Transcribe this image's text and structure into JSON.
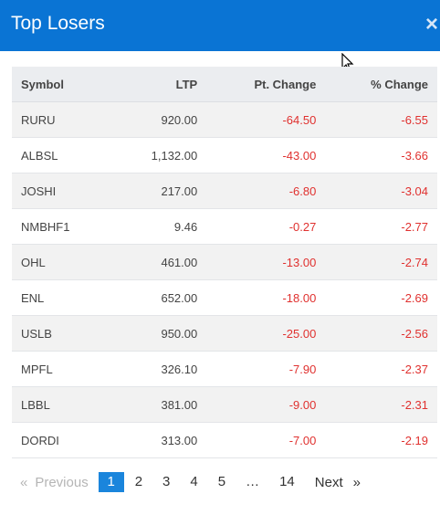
{
  "header": {
    "title": "Top Losers",
    "close_label": "×"
  },
  "table": {
    "columns": [
      "Symbol",
      "LTP",
      "Pt. Change",
      "% Change"
    ],
    "rows": [
      {
        "symbol": "RURU",
        "ltp": "920.00",
        "pt": "-64.50",
        "pct": "-6.55"
      },
      {
        "symbol": "ALBSL",
        "ltp": "1,132.00",
        "pt": "-43.00",
        "pct": "-3.66"
      },
      {
        "symbol": "JOSHI",
        "ltp": "217.00",
        "pt": "-6.80",
        "pct": "-3.04"
      },
      {
        "symbol": "NMBHF1",
        "ltp": "9.46",
        "pt": "-0.27",
        "pct": "-2.77"
      },
      {
        "symbol": "OHL",
        "ltp": "461.00",
        "pt": "-13.00",
        "pct": "-2.74"
      },
      {
        "symbol": "ENL",
        "ltp": "652.00",
        "pt": "-18.00",
        "pct": "-2.69"
      },
      {
        "symbol": "USLB",
        "ltp": "950.00",
        "pt": "-25.00",
        "pct": "-2.56"
      },
      {
        "symbol": "MPFL",
        "ltp": "326.10",
        "pt": "-7.90",
        "pct": "-2.37"
      },
      {
        "symbol": "LBBL",
        "ltp": "381.00",
        "pt": "-9.00",
        "pct": "-2.31"
      },
      {
        "symbol": "DORDI",
        "ltp": "313.00",
        "pt": "-7.00",
        "pct": "-2.19"
      }
    ]
  },
  "pagination": {
    "prev_arrow": "«",
    "prev_label": "Previous",
    "pages": [
      "1",
      "2",
      "3",
      "4",
      "5",
      "…",
      "14"
    ],
    "active_page": "1",
    "next_label": "Next",
    "next_arrow": "»"
  },
  "colors": {
    "header": "#0a74d4",
    "negative": "#e0312f",
    "active_page": "#1a85dc"
  }
}
